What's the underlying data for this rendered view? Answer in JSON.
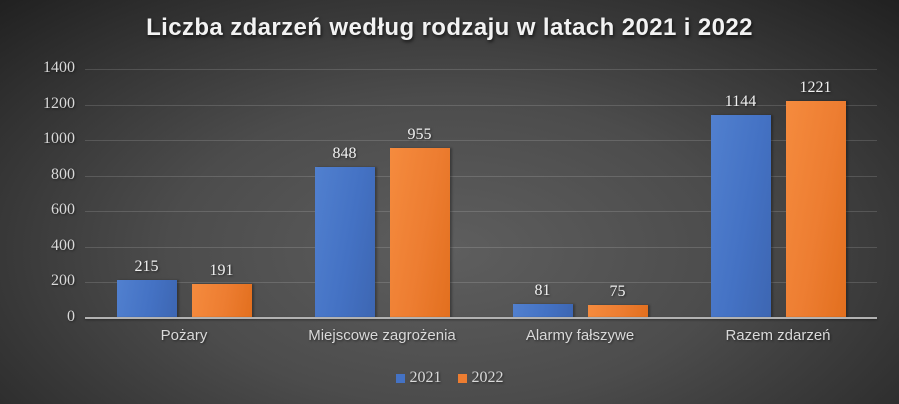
{
  "chart_data": {
    "type": "bar",
    "title": "Liczba zdarzeń według rodzaju w latach 2021 i 2022",
    "categories": [
      "Pożary",
      "Miejscowe zagrożenia",
      "Alarmy fałszywe",
      "Razem zdarzeń"
    ],
    "series": [
      {
        "name": "2021",
        "color": "#4472C4",
        "values": [
          215,
          848,
          81,
          1144
        ]
      },
      {
        "name": "2022",
        "color": "#ED7D31",
        "values": [
          191,
          955,
          75,
          1221
        ]
      }
    ],
    "xlabel": "",
    "ylabel": "",
    "ylim": [
      0,
      1400
    ],
    "yticks": [
      0,
      200,
      400,
      600,
      800,
      1000,
      1200,
      1400
    ],
    "grid": true,
    "data_labels": true,
    "legend_position": "bottom"
  },
  "legend": {
    "items": [
      {
        "label": "2021",
        "color": "#4472C4"
      },
      {
        "label": "2022",
        "color": "#ED7D31"
      }
    ]
  },
  "style": {
    "background_center": "#5e5e5e",
    "background_edge": "#1a1a1a",
    "title_color": "#f2f2f2",
    "label_color": "#d9d9d9",
    "data_label_color": "#f0f0f0",
    "gridline_color": "rgba(255,255,255,0.14)",
    "axis_line_color": "#b2b2b2"
  }
}
